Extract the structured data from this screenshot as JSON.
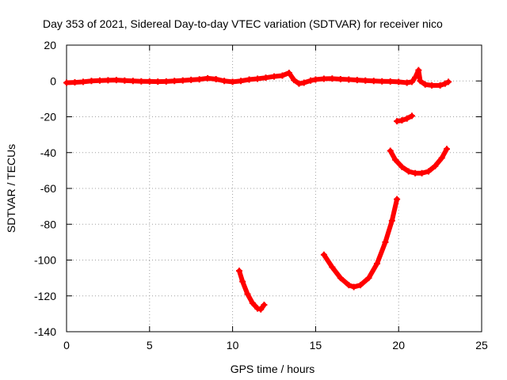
{
  "chart_data": {
    "type": "scatter",
    "title": "Day 353 of 2021, Sidereal Day-to-day VTEC variation (SDTVAR) for receiver nico",
    "xlabel": "GPS time / hours",
    "ylabel": "SDTVAR / TECUs",
    "xlim": [
      0,
      25
    ],
    "ylim": [
      -140,
      20
    ],
    "xticks": [
      "0",
      "5",
      "10",
      "15",
      "20",
      "25"
    ],
    "yticks": [
      "20",
      "0",
      "-20",
      "-40",
      "-60",
      "-80",
      "-100",
      "-120",
      "-140"
    ],
    "grid": true,
    "legend": "none",
    "marker_color": "#ff0000",
    "series": [
      {
        "points": [
          [
            0.0,
            -1.0
          ],
          [
            0.5,
            -0.8
          ],
          [
            1.0,
            -0.5
          ],
          [
            1.5,
            0.0
          ],
          [
            2.0,
            0.2
          ],
          [
            2.5,
            0.4
          ],
          [
            3.0,
            0.5
          ],
          [
            3.5,
            0.2
          ],
          [
            4.0,
            0.0
          ],
          [
            4.5,
            -0.2
          ],
          [
            5.0,
            -0.3
          ],
          [
            5.5,
            -0.4
          ],
          [
            6.0,
            -0.3
          ],
          [
            6.5,
            0.0
          ],
          [
            7.0,
            0.3
          ],
          [
            7.5,
            0.6
          ],
          [
            8.0,
            0.9
          ],
          [
            8.5,
            1.5
          ],
          [
            9.0,
            1.0
          ],
          [
            9.5,
            0.0
          ],
          [
            10.0,
            -0.5
          ],
          [
            10.5,
            0.0
          ],
          [
            11.0,
            0.8
          ],
          [
            11.5,
            1.2
          ],
          [
            12.0,
            1.8
          ],
          [
            12.5,
            2.5
          ],
          [
            13.0,
            3.0
          ],
          [
            13.4,
            4.5
          ],
          [
            13.7,
            0.5
          ],
          [
            14.0,
            -1.5
          ],
          [
            14.3,
            -1.0
          ],
          [
            14.7,
            0.2
          ],
          [
            15.0,
            0.8
          ],
          [
            15.5,
            1.2
          ],
          [
            16.0,
            1.3
          ],
          [
            16.5,
            1.0
          ],
          [
            17.0,
            0.8
          ],
          [
            17.5,
            0.5
          ],
          [
            18.0,
            0.2
          ],
          [
            18.5,
            0.0
          ],
          [
            19.0,
            -0.2
          ],
          [
            19.5,
            -0.3
          ],
          [
            20.0,
            -0.5
          ],
          [
            20.5,
            -1.0
          ],
          [
            20.8,
            -0.5
          ],
          [
            21.0,
            2.0
          ],
          [
            21.2,
            6.0
          ],
          [
            21.3,
            0.0
          ],
          [
            21.6,
            -2.0
          ],
          [
            22.0,
            -2.5
          ],
          [
            22.5,
            -2.5
          ],
          [
            22.8,
            -1.5
          ],
          [
            23.0,
            -0.5
          ]
        ]
      },
      {
        "points": [
          [
            19.9,
            -22.5
          ],
          [
            20.2,
            -22.0
          ],
          [
            20.5,
            -21.0
          ],
          [
            20.8,
            -19.5
          ]
        ]
      },
      {
        "points": [
          [
            19.5,
            -39.0
          ],
          [
            19.8,
            -44.0
          ],
          [
            20.2,
            -48.0
          ],
          [
            20.6,
            -50.5
          ],
          [
            21.0,
            -51.5
          ],
          [
            21.4,
            -51.5
          ],
          [
            21.8,
            -50.5
          ],
          [
            22.2,
            -47.5
          ],
          [
            22.6,
            -43.0
          ],
          [
            22.9,
            -38.0
          ]
        ]
      },
      {
        "points": [
          [
            15.5,
            -97.0
          ],
          [
            16.0,
            -104.0
          ],
          [
            16.5,
            -110.0
          ],
          [
            17.0,
            -114.0
          ],
          [
            17.3,
            -115.0
          ],
          [
            17.7,
            -114.0
          ],
          [
            18.2,
            -110.0
          ],
          [
            18.7,
            -102.0
          ],
          [
            19.2,
            -90.0
          ],
          [
            19.6,
            -78.0
          ],
          [
            19.9,
            -66.0
          ]
        ]
      },
      {
        "points": [
          [
            10.4,
            -106.0
          ],
          [
            10.6,
            -112.0
          ],
          [
            10.9,
            -119.0
          ],
          [
            11.2,
            -124.0
          ],
          [
            11.5,
            -127.0
          ],
          [
            11.7,
            -127.5
          ],
          [
            11.9,
            -125.0
          ]
        ]
      }
    ]
  }
}
